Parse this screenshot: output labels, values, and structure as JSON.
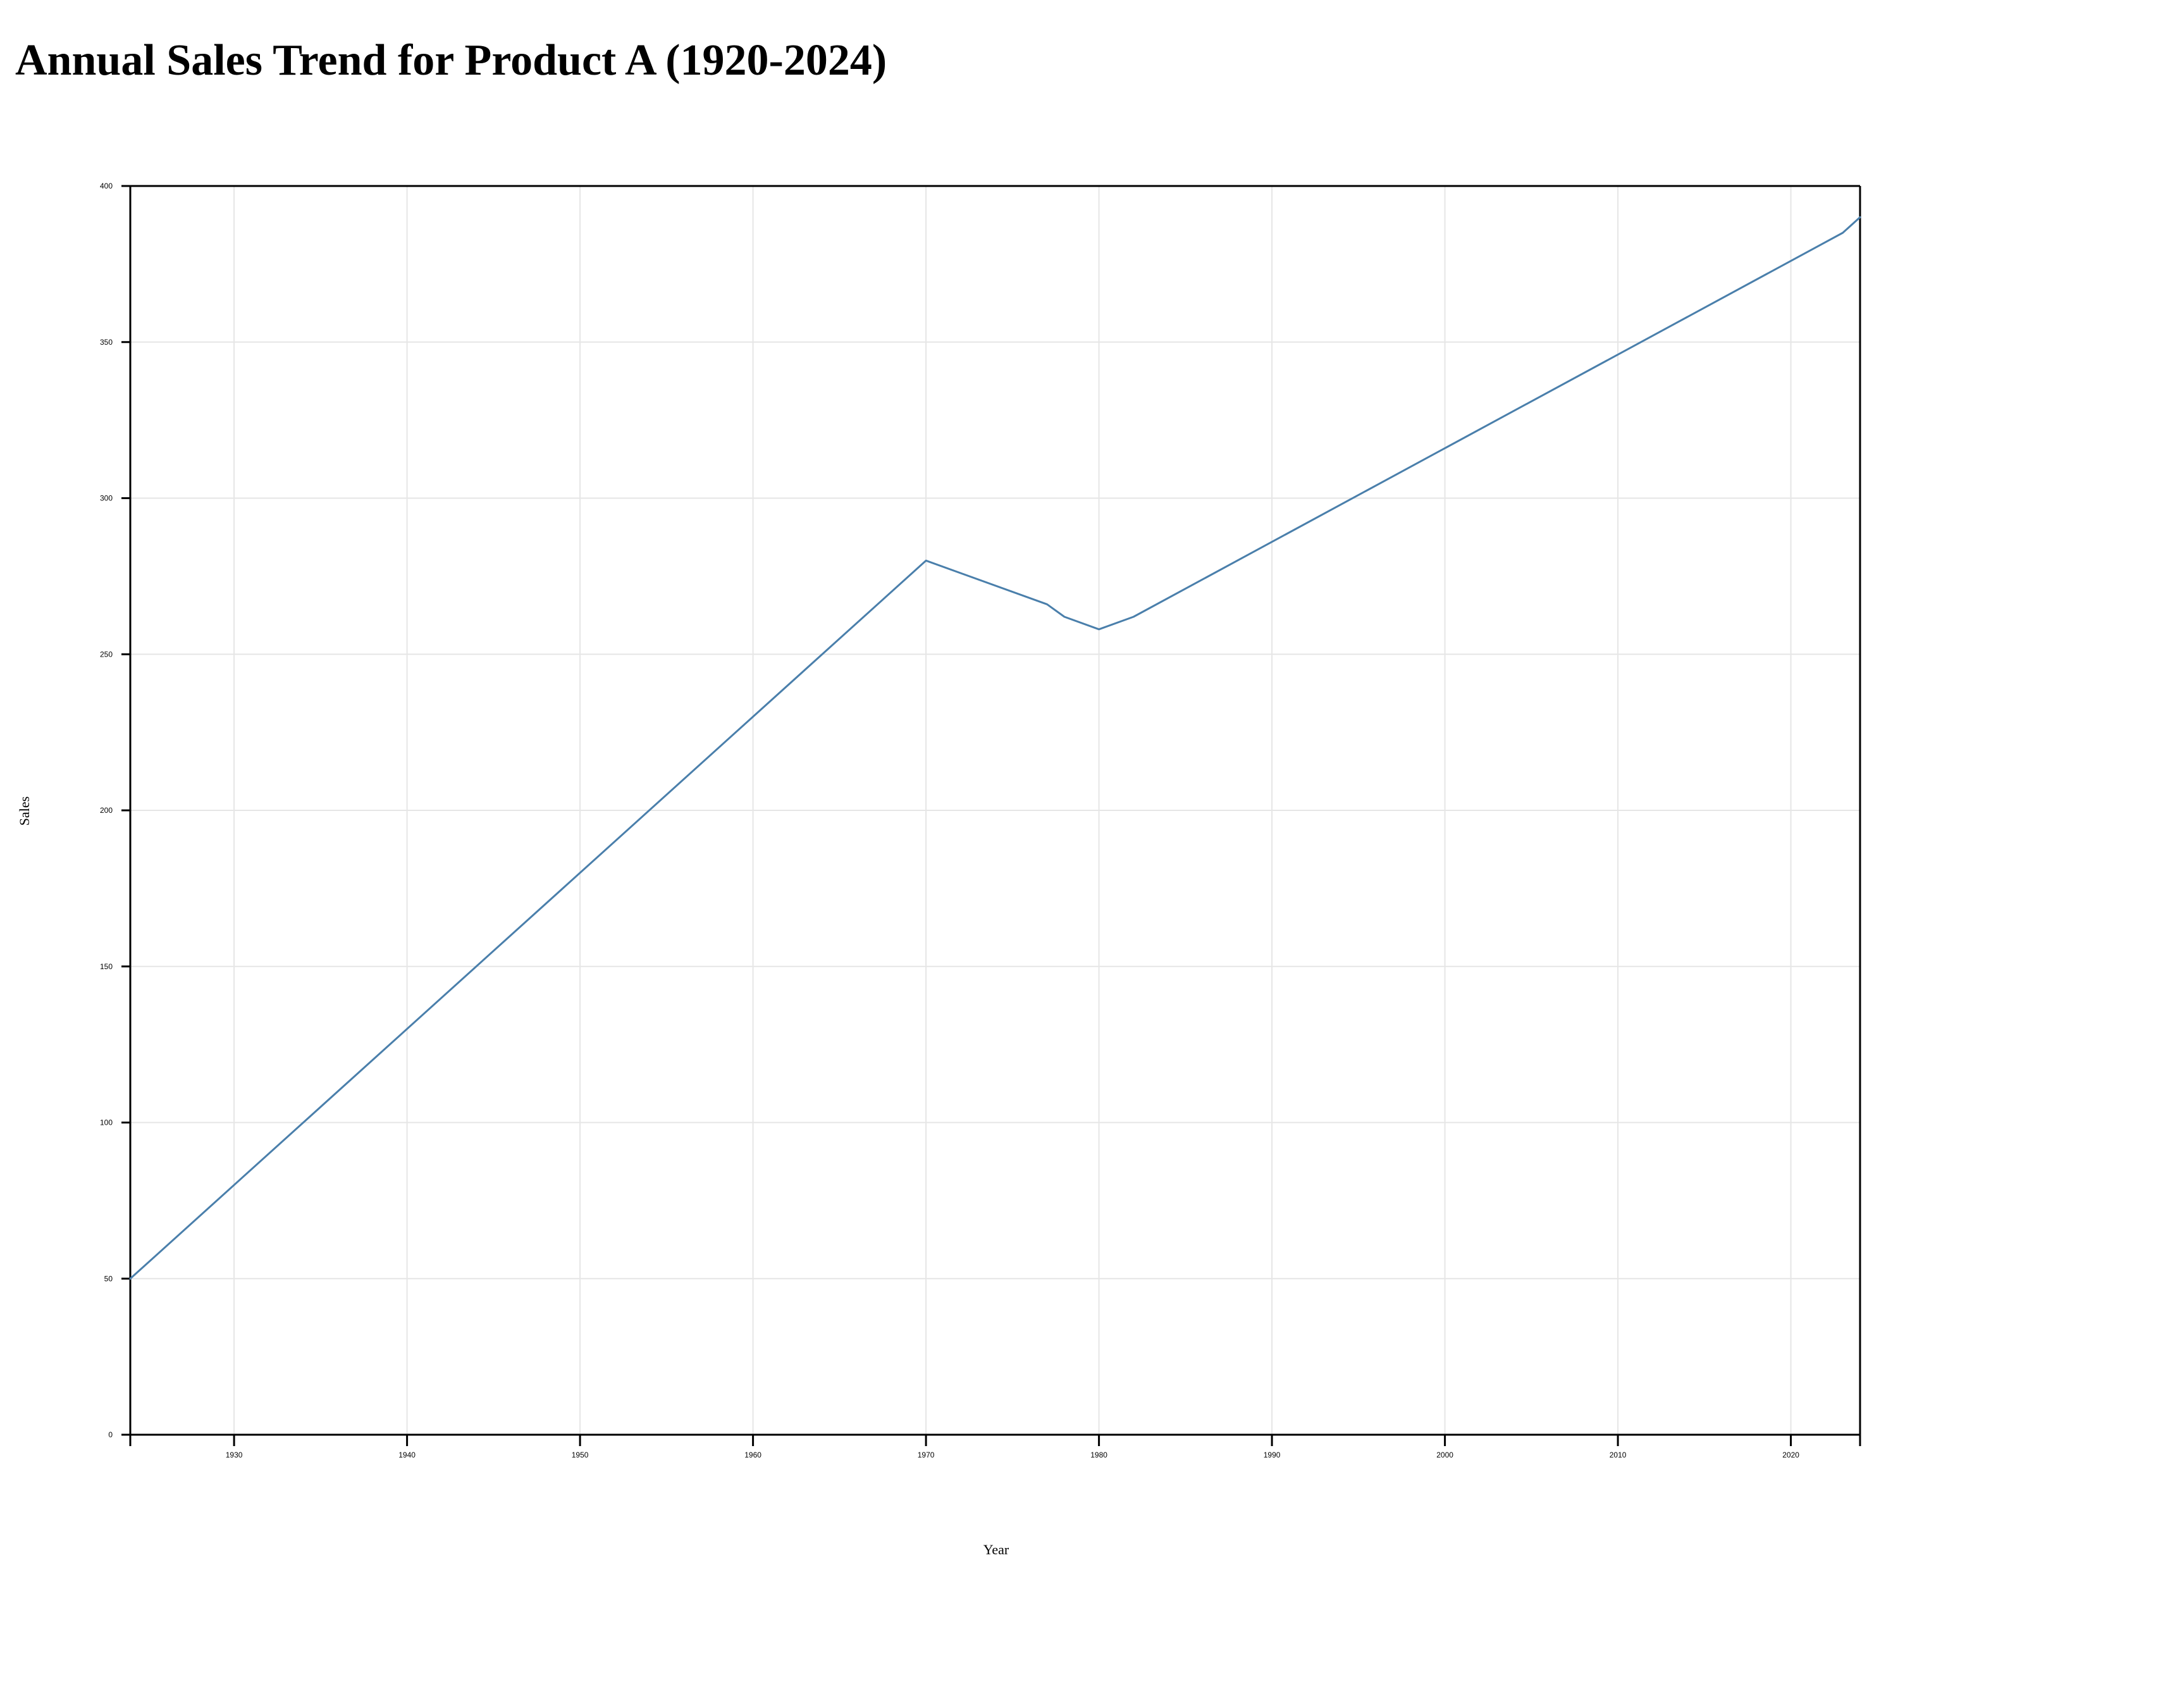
{
  "page": {
    "title": "Annual Sales Trend for Product A (1920-2024)"
  },
  "chart_data": {
    "type": "line",
    "title": "Annual Sales Trend for Product A (1920-2024)",
    "xlabel": "Year",
    "ylabel": "Sales",
    "xlim": [
      1924,
      2024
    ],
    "ylim": [
      0,
      400
    ],
    "x_ticks": [
      1930,
      1940,
      1950,
      1960,
      1970,
      1980,
      1990,
      2000,
      2010,
      2020
    ],
    "y_ticks": [
      0,
      50,
      100,
      150,
      200,
      250,
      300,
      350,
      400
    ],
    "grid": true,
    "legend": "none",
    "colors": {
      "line": "#4a7fab",
      "grid": "#e6e6e6",
      "axis": "#000000"
    },
    "series": [
      {
        "x": [
          1924,
          1970,
          1977,
          1978,
          1980,
          1982,
          2023,
          2024
        ],
        "values": [
          50,
          280,
          266,
          262,
          258,
          262,
          385,
          390
        ]
      }
    ]
  }
}
